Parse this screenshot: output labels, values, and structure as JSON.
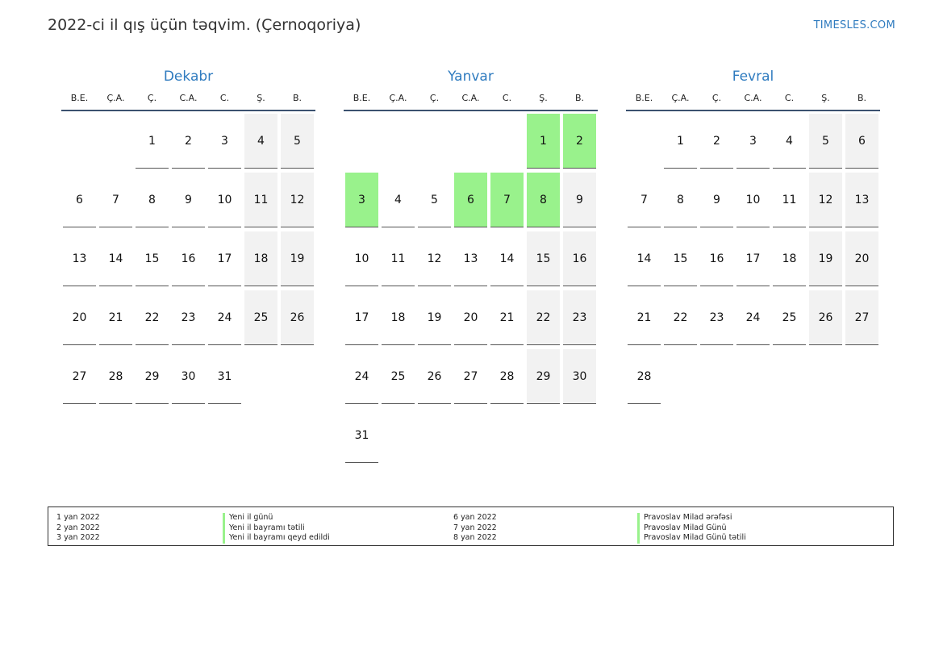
{
  "title": "2022-ci il qış üçün təqvim. (Çernoqoriya)",
  "brand": "TIMESLES.COM",
  "colors": {
    "accent": "#2f7bbf",
    "holiday": "#99f28c",
    "weekend": "#f2f2f2"
  },
  "weekdays": [
    "B.E.",
    "Ç.A.",
    "Ç.",
    "C.A.",
    "C.",
    "Ş.",
    "B."
  ],
  "months": [
    {
      "name": "Dekabr",
      "weeks": [
        [
          "",
          "",
          "1",
          "2",
          "3",
          "4",
          "5"
        ],
        [
          "6",
          "7",
          "8",
          "9",
          "10",
          "11",
          "12"
        ],
        [
          "13",
          "14",
          "15",
          "16",
          "17",
          "18",
          "19"
        ],
        [
          "20",
          "21",
          "22",
          "23",
          "24",
          "25",
          "26"
        ],
        [
          "27",
          "28",
          "29",
          "30",
          "31",
          "",
          ""
        ]
      ],
      "holidays": []
    },
    {
      "name": "Yanvar",
      "weeks": [
        [
          "",
          "",
          "",
          "",
          "",
          "1",
          "2"
        ],
        [
          "3",
          "4",
          "5",
          "6",
          "7",
          "8",
          "9"
        ],
        [
          "10",
          "11",
          "12",
          "13",
          "14",
          "15",
          "16"
        ],
        [
          "17",
          "18",
          "19",
          "20",
          "21",
          "22",
          "23"
        ],
        [
          "24",
          "25",
          "26",
          "27",
          "28",
          "29",
          "30"
        ],
        [
          "31",
          "",
          "",
          "",
          "",
          "",
          ""
        ]
      ],
      "holidays": [
        "1",
        "2",
        "3",
        "6",
        "7",
        "8"
      ]
    },
    {
      "name": "Fevral",
      "weeks": [
        [
          "",
          "1",
          "2",
          "3",
          "4",
          "5",
          "6"
        ],
        [
          "7",
          "8",
          "9",
          "10",
          "11",
          "12",
          "13"
        ],
        [
          "14",
          "15",
          "16",
          "17",
          "18",
          "19",
          "20"
        ],
        [
          "21",
          "22",
          "23",
          "24",
          "25",
          "26",
          "27"
        ],
        [
          "28",
          "",
          "",
          "",
          "",
          "",
          ""
        ]
      ],
      "holidays": []
    }
  ],
  "legend": {
    "col1_dates": [
      "1 yan 2022",
      "2 yan 2022",
      "3 yan 2022"
    ],
    "col1_names": [
      "Yeni il günü",
      "Yeni il bayramı tətili",
      "Yeni il bayramı qeyd edildi"
    ],
    "col2_dates": [
      "6 yan 2022",
      "7 yan 2022",
      "8 yan 2022"
    ],
    "col2_names": [
      "Pravoslav Milad ərəfəsi",
      "Pravoslav Milad Günü",
      "Pravoslav Milad Günü tətili"
    ]
  }
}
